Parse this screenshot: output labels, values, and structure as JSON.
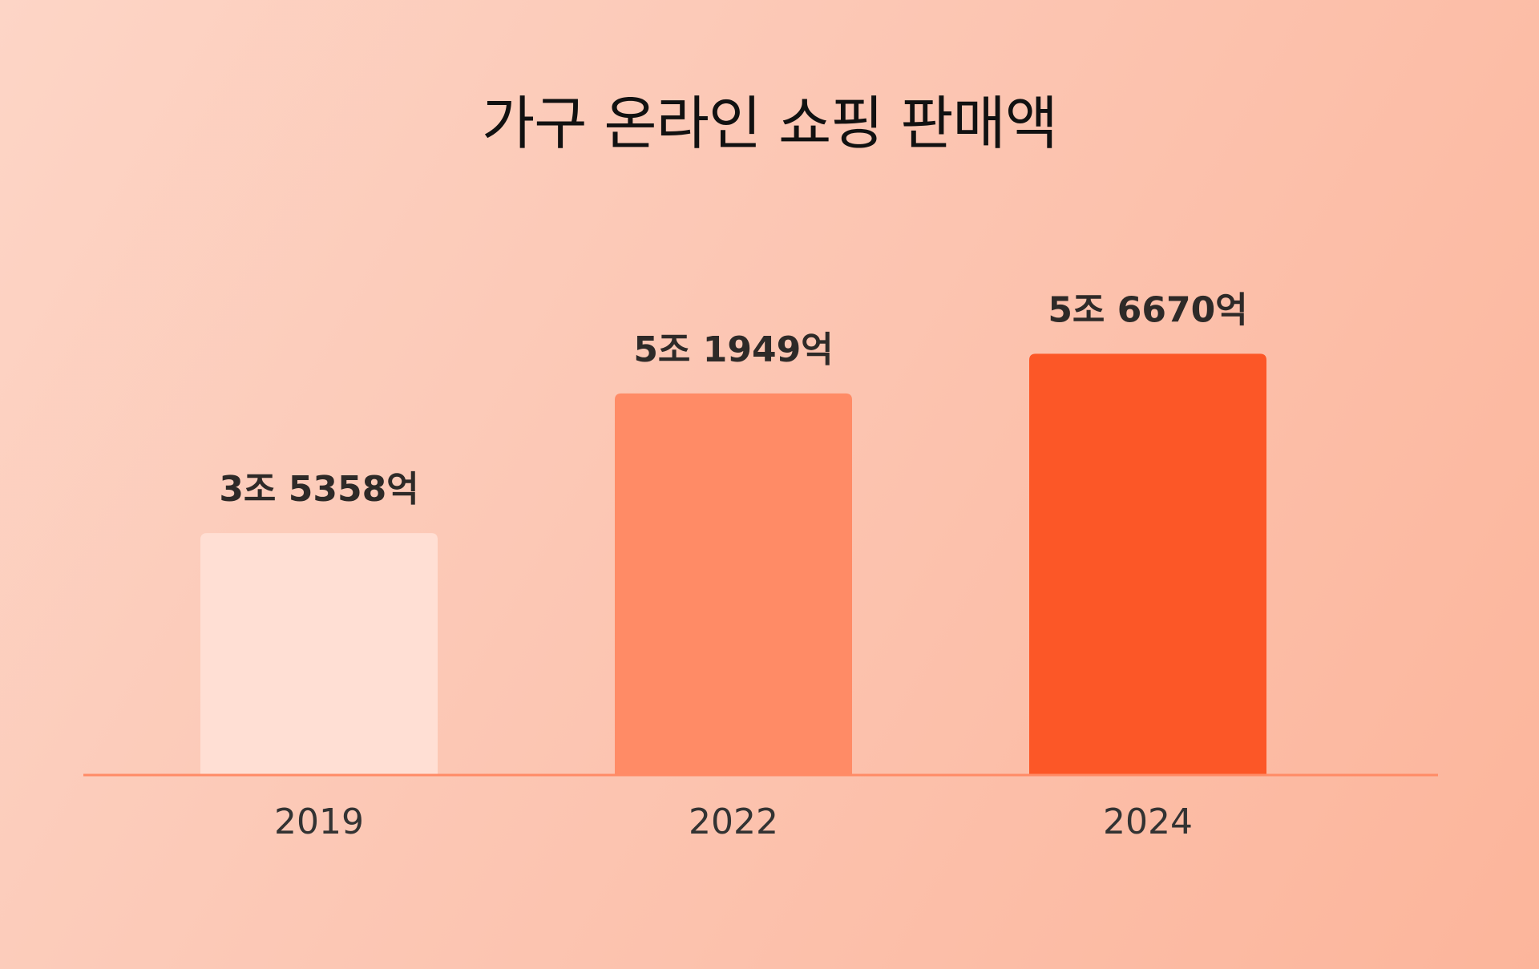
{
  "chart_data": {
    "type": "bar",
    "title": "가구 온라인 쇼핑 판매액",
    "categories": [
      "2019",
      "2022",
      "2024"
    ],
    "values": [
      35358,
      51949,
      56670
    ],
    "value_unit": "억원",
    "data_labels": [
      "3조 5358억",
      "5조 1949억",
      "5조 6670억"
    ],
    "bar_colors": [
      "#ffdfd4",
      "#ff8b66",
      "#fc5727"
    ],
    "axis_color": "#ff8b66",
    "xlabel": "",
    "ylabel": "",
    "grid": false,
    "legend": "none"
  }
}
